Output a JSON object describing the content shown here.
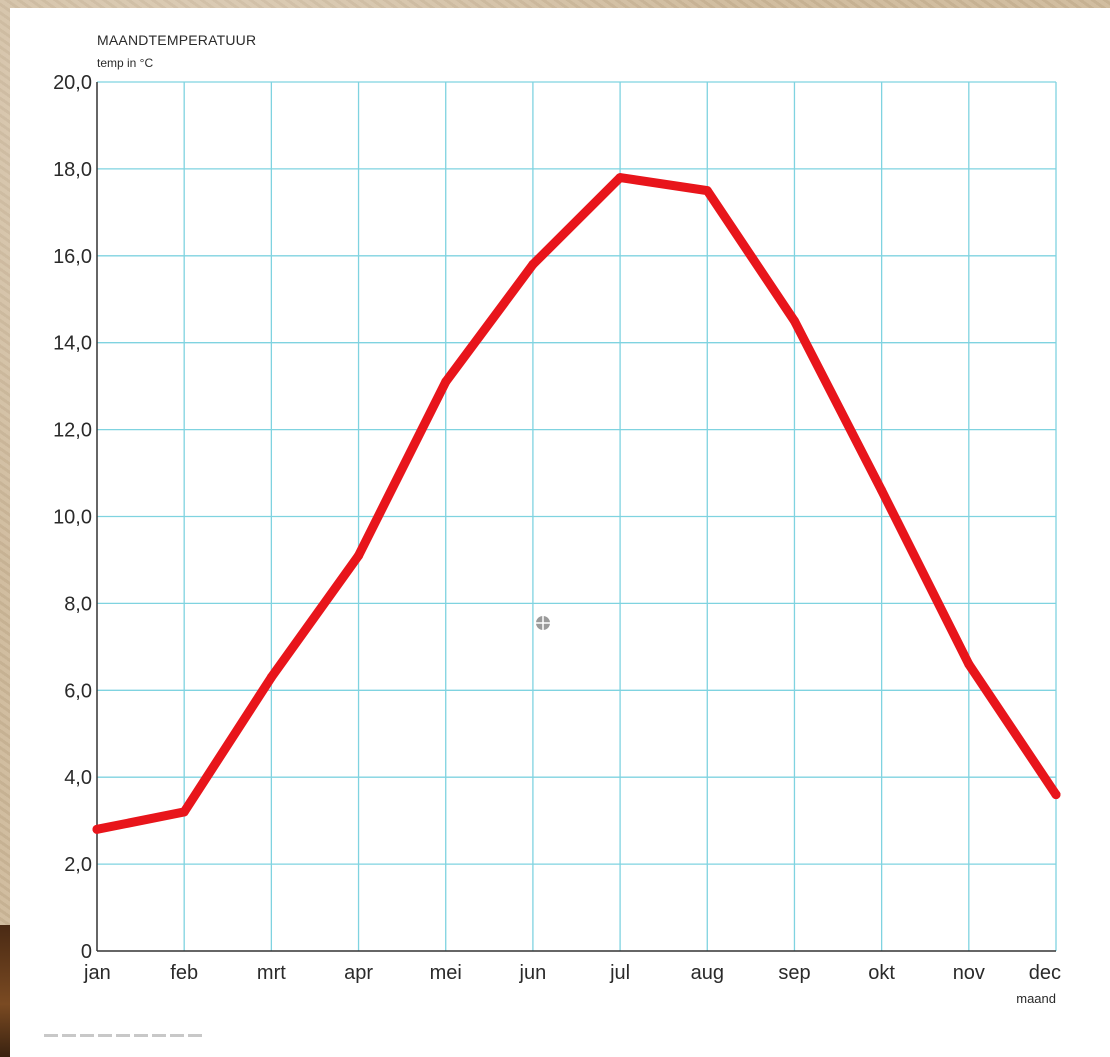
{
  "chart_data": {
    "type": "line",
    "title": "MAANDTEMPERATUUR",
    "ylabel": "temp in °C",
    "xlabel": "maand",
    "categories": [
      "jan",
      "feb",
      "mrt",
      "apr",
      "mei",
      "jun",
      "jul",
      "aug",
      "sep",
      "okt",
      "nov",
      "dec"
    ],
    "series": [
      {
        "values": [
          2.8,
          3.2,
          6.3,
          9.1,
          13.1,
          15.8,
          17.8,
          17.5,
          14.5,
          10.6,
          6.6,
          3.6
        ]
      }
    ],
    "ylim": [
      0,
      20
    ],
    "yticks": [
      "0",
      "2,0",
      "4,0",
      "6,0",
      "8,0",
      "10,0",
      "12,0",
      "14,0",
      "16,0",
      "18,0",
      "20,0"
    ],
    "grid": true,
    "line_color": "#e8151b",
    "grid_color": "#7fd3e0"
  }
}
